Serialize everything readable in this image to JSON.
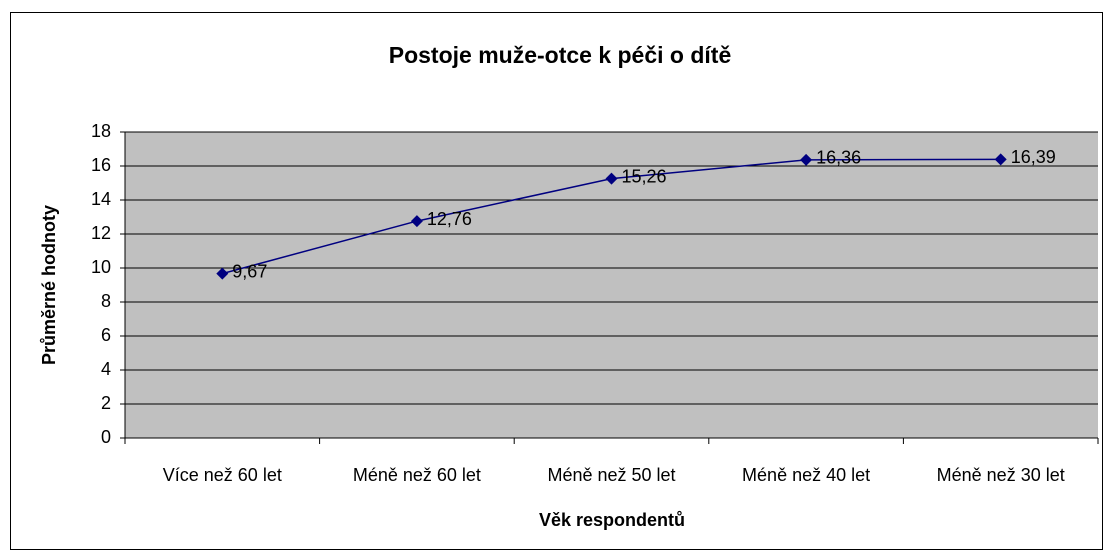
{
  "chart_data": {
    "type": "line",
    "title": "Postoje muže-otce k péči o dítě",
    "x_label": "Věk respondentů",
    "y_label": "Průměrné hodnoty",
    "categories": [
      "Více než 60 let",
      "Méně než 60 let",
      "Méně než 50 let",
      "Méně než 40 let",
      "Méně než 30 let"
    ],
    "series": [
      {
        "name": "Průměrné hodnoty",
        "color": "#000080",
        "values": [
          9.67,
          12.76,
          15.26,
          16.36,
          16.39
        ],
        "value_labels": [
          "9,67",
          "12,76",
          "15,26",
          "16,36",
          "16,39"
        ]
      }
    ],
    "ylim": [
      0,
      18
    ],
    "yticks": [
      0,
      2,
      4,
      6,
      8,
      10,
      12,
      14,
      16,
      18
    ],
    "grid": true,
    "plot_background": "#c0c0c0"
  }
}
